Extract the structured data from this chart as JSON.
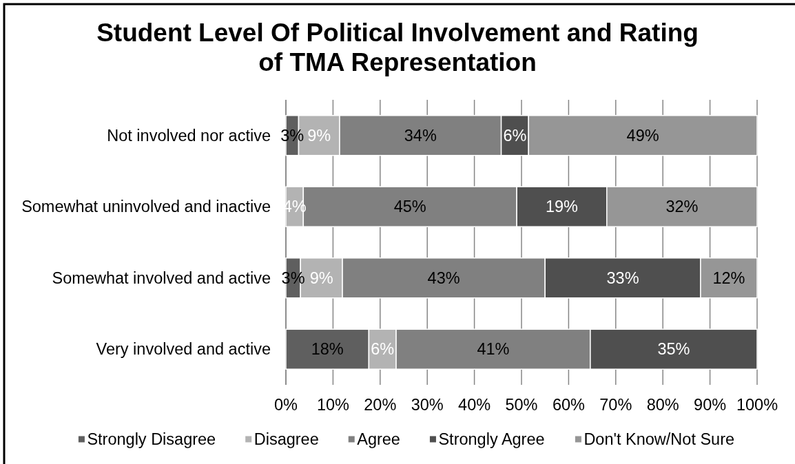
{
  "chart_data": {
    "type": "bar",
    "title": "Student Level Of Political Involvement and Rating of TMA Representation",
    "orientation": "horizontal",
    "stacked": true,
    "categories": [
      "Not involved nor active",
      "Somewhat uninvolved and inactive",
      "Somewhat involved and active",
      "Very involved and active"
    ],
    "series": [
      {
        "name": "Strongly Disagree",
        "color": "#5f5f5f",
        "values": [
          2.7,
          null,
          3.1,
          17.6
        ],
        "value_labels": [
          "3%",
          null,
          "3%",
          "18%"
        ]
      },
      {
        "name": "Disagree",
        "color": "#b3b3b3",
        "values": [
          8.7,
          3.7,
          8.9,
          5.8
        ],
        "value_labels": [
          "9%",
          "4%",
          "9%",
          "6%"
        ]
      },
      {
        "name": "Agree",
        "color": "#808080",
        "values": [
          34.3,
          45.3,
          43.0,
          41.2
        ],
        "value_labels": [
          "34%",
          "45%",
          "43%",
          "41%"
        ]
      },
      {
        "name": "Strongly Agree",
        "color": "#4f4f4f",
        "values": [
          5.8,
          19.1,
          33.0,
          35.4
        ],
        "value_labels": [
          "6%",
          "19%",
          "33%",
          "35%"
        ]
      },
      {
        "name": "Don't Know/Not Sure",
        "color": "#969696",
        "values": [
          48.5,
          31.9,
          12.0,
          null
        ],
        "value_labels": [
          "49%",
          "32%",
          "12%",
          null
        ]
      }
    ],
    "xlim": [
      0,
      100
    ],
    "xticks": [
      {
        "value": 0,
        "label": "0%"
      },
      {
        "value": 10,
        "label": "10%"
      },
      {
        "value": 20,
        "label": "20%"
      },
      {
        "value": 30,
        "label": "30%"
      },
      {
        "value": 40,
        "label": "40%"
      },
      {
        "value": 50,
        "label": "50%"
      },
      {
        "value": 60,
        "label": "60%"
      },
      {
        "value": 70,
        "label": "70%"
      },
      {
        "value": 80,
        "label": "80%"
      },
      {
        "value": 90,
        "label": "90%"
      },
      {
        "value": 100,
        "label": "100%"
      }
    ],
    "grid": "x",
    "legend": "bottom"
  }
}
